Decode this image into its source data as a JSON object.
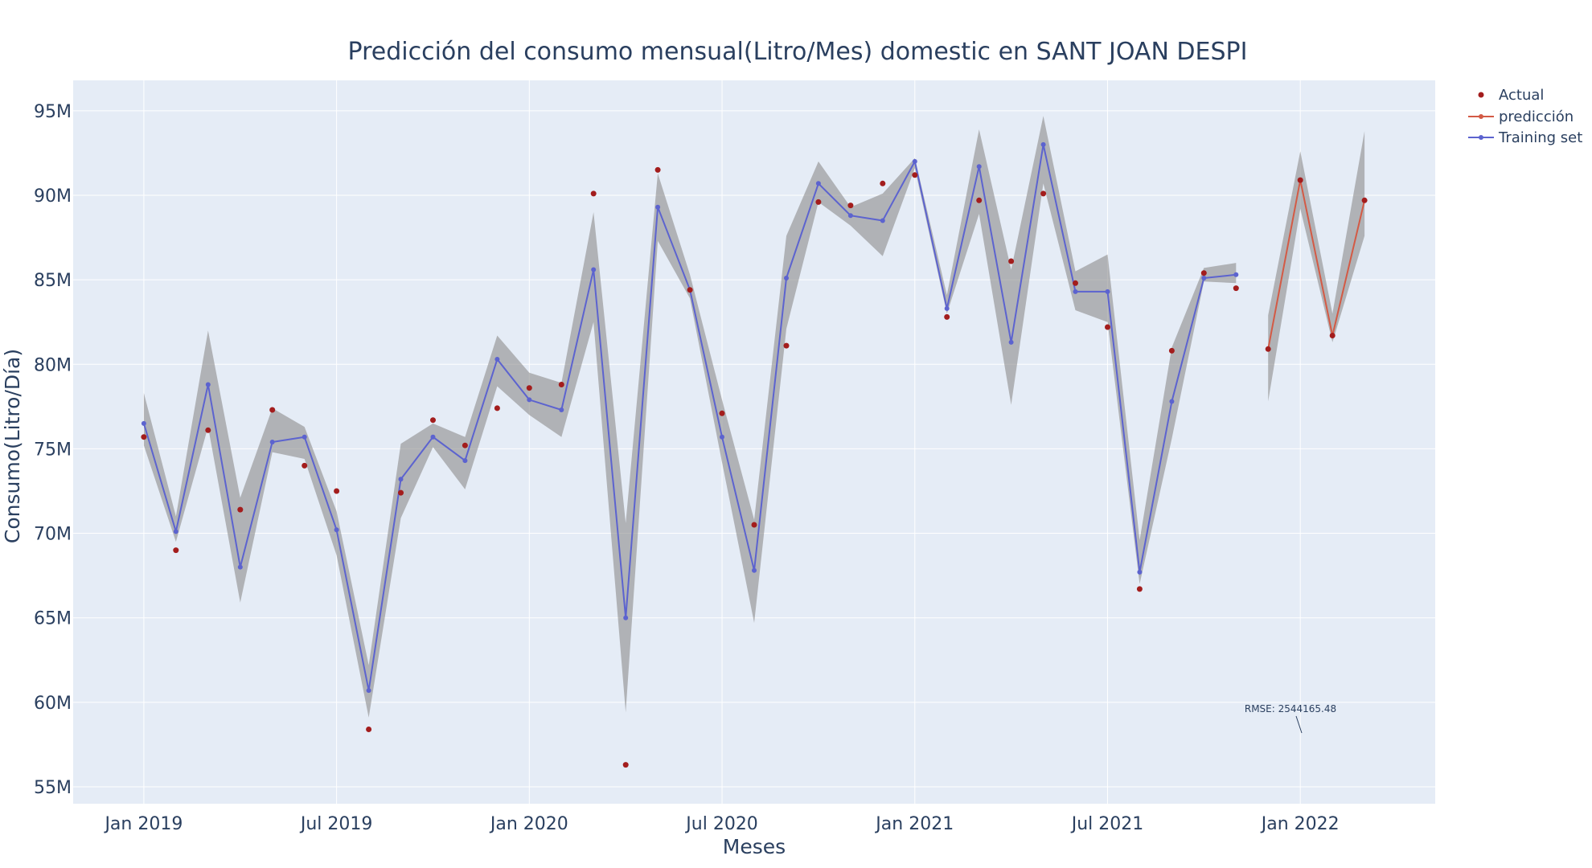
{
  "chart_data": {
    "type": "line",
    "title": "Predicción del consumo mensual(Litro/Mes) domestic en SANT JOAN DESPI",
    "xlabel": "Meses",
    "ylabel": "Consumo(Litro/Día)",
    "x_ticks": [
      "Jan 2019",
      "Jul 2019",
      "Jan 2020",
      "Jul 2020",
      "Jan 2021",
      "Jul 2021",
      "Jan 2022"
    ],
    "y_ticks": [
      "55M",
      "60M",
      "65M",
      "70M",
      "75M",
      "80M",
      "85M",
      "90M",
      "95M"
    ],
    "ylim": [
      54000000,
      96800000
    ],
    "grid": true,
    "legend_position": "top-right",
    "annotation": "RMSE: 2544165.48",
    "series": [
      {
        "name": "Actual",
        "mode": "markers",
        "color": "#a31d1d",
        "x": [
          "2019-01",
          "2019-02",
          "2019-03",
          "2019-04",
          "2019-05",
          "2019-06",
          "2019-07",
          "2019-08",
          "2019-09",
          "2019-10",
          "2019-11",
          "2019-12",
          "2020-01",
          "2020-02",
          "2020-03",
          "2020-04",
          "2020-05",
          "2020-06",
          "2020-07",
          "2020-08",
          "2020-09",
          "2020-10",
          "2020-11",
          "2020-12",
          "2021-01",
          "2021-02",
          "2021-03",
          "2021-04",
          "2021-05",
          "2021-06",
          "2021-07",
          "2021-08",
          "2021-09",
          "2021-10",
          "2021-11",
          "2021-12",
          "2022-01",
          "2022-02",
          "2022-03"
        ],
        "y": [
          75700000,
          69000000,
          76100000,
          71400000,
          77300000,
          74000000,
          72500000,
          58400000,
          72400000,
          76700000,
          75200000,
          77400000,
          78600000,
          78800000,
          90100000,
          56300000,
          91500000,
          84400000,
          77100000,
          70500000,
          81100000,
          89600000,
          89400000,
          90700000,
          91200000,
          82800000,
          89700000,
          86100000,
          90100000,
          84800000,
          82200000,
          66700000,
          80800000,
          85400000,
          84500000,
          80900000,
          90900000,
          81700000,
          89700000
        ]
      },
      {
        "name": "predicción",
        "mode": "lines+markers",
        "color": "#d35a45",
        "x": [
          "2021-12",
          "2022-01",
          "2022-02",
          "2022-03"
        ],
        "y": [
          80900000,
          90900000,
          81700000,
          89700000
        ],
        "upper": [
          82900000,
          92600000,
          83000000,
          93800000
        ],
        "lower": [
          77800000,
          89200000,
          81300000,
          87600000
        ]
      },
      {
        "name": "Training set",
        "mode": "lines+markers",
        "color": "#5c63cf",
        "x": [
          "2019-01",
          "2019-02",
          "2019-03",
          "2019-04",
          "2019-05",
          "2019-06",
          "2019-07",
          "2019-08",
          "2019-09",
          "2019-10",
          "2019-11",
          "2019-12",
          "2020-01",
          "2020-02",
          "2020-03",
          "2020-04",
          "2020-05",
          "2020-06",
          "2020-07",
          "2020-08",
          "2020-09",
          "2020-10",
          "2020-11",
          "2020-12",
          "2021-01",
          "2021-02",
          "2021-03",
          "2021-04",
          "2021-05",
          "2021-06",
          "2021-07",
          "2021-08",
          "2021-09",
          "2021-10",
          "2021-11"
        ],
        "y": [
          76500000,
          70100000,
          78800000,
          68000000,
          75400000,
          75700000,
          70200000,
          60700000,
          73200000,
          75700000,
          74300000,
          80300000,
          77900000,
          77300000,
          85600000,
          65000000,
          89300000,
          84400000,
          75700000,
          67800000,
          85100000,
          90700000,
          88800000,
          88500000,
          92000000,
          83300000,
          91700000,
          81300000,
          93000000,
          84300000,
          84300000,
          67700000,
          77800000,
          85100000,
          85300000
        ],
        "upper": [
          78300000,
          71000000,
          82000000,
          72100000,
          77400000,
          76300000,
          71300000,
          62200000,
          75300000,
          76500000,
          75700000,
          81700000,
          79500000,
          78900000,
          89000000,
          70600000,
          91300000,
          85300000,
          77900000,
          70800000,
          87600000,
          92000000,
          89300000,
          90100000,
          92200000,
          84100000,
          93900000,
          85600000,
          94700000,
          85500000,
          86500000,
          69600000,
          81000000,
          85700000,
          86000000
        ],
        "lower": [
          75200000,
          69500000,
          76300000,
          65900000,
          74800000,
          74400000,
          68700000,
          59100000,
          70900000,
          75100000,
          72600000,
          78700000,
          77000000,
          75700000,
          82500000,
          59400000,
          87300000,
          83900000,
          74200000,
          64700000,
          82100000,
          89600000,
          88200000,
          86400000,
          91600000,
          83000000,
          88900000,
          77600000,
          90700000,
          83200000,
          82500000,
          67000000,
          75600000,
          84900000,
          84800000
        ]
      }
    ]
  }
}
